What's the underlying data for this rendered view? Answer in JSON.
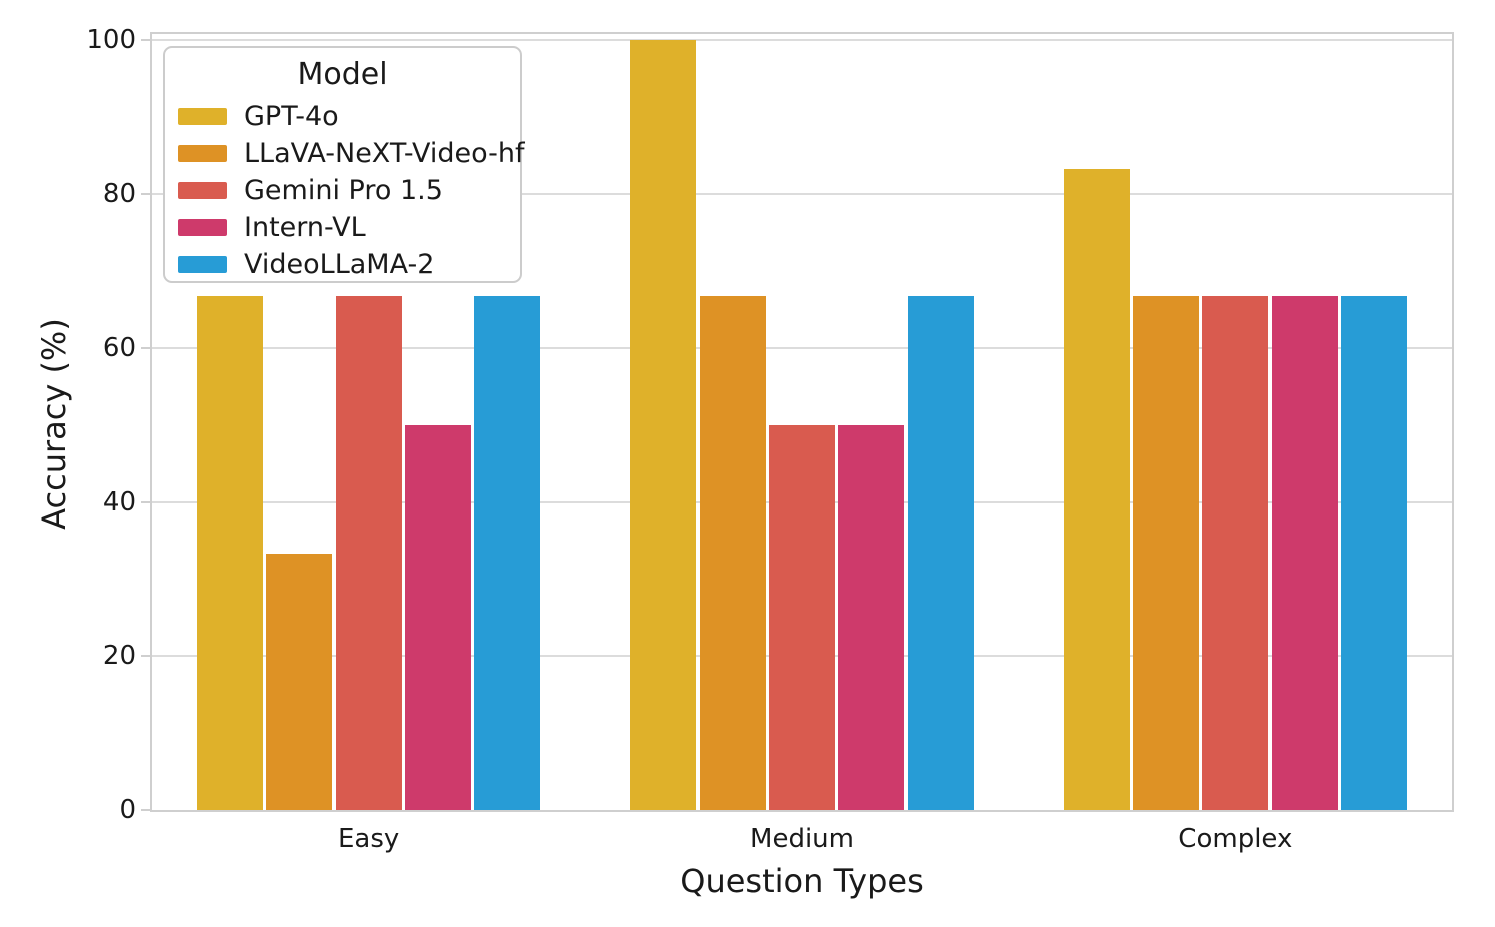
{
  "chart_data": {
    "type": "bar",
    "title": "",
    "xlabel": "Question Types",
    "ylabel": "Accuracy (%)",
    "categories": [
      "Easy",
      "Medium",
      "Complex"
    ],
    "series": [
      {
        "name": "GPT-4o",
        "color": "#DFB12A",
        "values": [
          66.7,
          100,
          83.3
        ]
      },
      {
        "name": "LLaVA-NeXT-Video-hf",
        "color": "#DE9225",
        "values": [
          33.3,
          66.7,
          66.7
        ]
      },
      {
        "name": "Gemini Pro 1.5",
        "color": "#D95B4F",
        "values": [
          66.7,
          50,
          66.7
        ]
      },
      {
        "name": "Intern-VL",
        "color": "#CE3A6B",
        "values": [
          50,
          50,
          66.7
        ]
      },
      {
        "name": "VideoLLaMA-2",
        "color": "#279CD6",
        "values": [
          66.7,
          66.7,
          66.7
        ]
      }
    ],
    "yticks": [
      0,
      20,
      40,
      60,
      80,
      100
    ],
    "ylim": [
      0,
      100.8
    ],
    "grid": "horizontal",
    "legend_title": "Model",
    "legend_position": "upper-left",
    "colors": {
      "grid": "#DCDCDC",
      "spine": "#CFCFCF",
      "text": "#1A1A1A",
      "background": "#FFFFFF"
    }
  }
}
